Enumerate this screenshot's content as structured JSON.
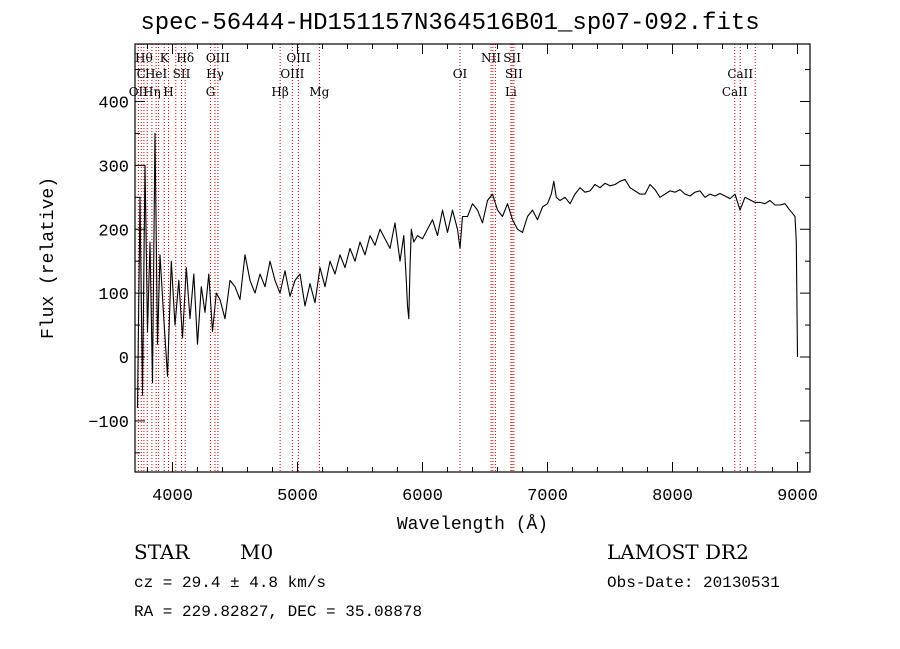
{
  "chart_data": {
    "type": "line",
    "title": "spec-56444-HD151157N364516B01_sp07-092.fits",
    "xlabel": "Wavelength (Å)",
    "ylabel": "Flux (relative)",
    "xlim": [
      3700,
      9100
    ],
    "ylim": [
      -180,
      490
    ],
    "xticks": [
      4000,
      5000,
      6000,
      7000,
      8000,
      9000
    ],
    "yticks": [
      -100,
      0,
      100,
      200,
      300,
      400
    ],
    "grid": false,
    "line_color": "#000000",
    "marker_line_color": "#cc0000",
    "series": [
      {
        "x": [
          3720,
          3740,
          3760,
          3780,
          3800,
          3820,
          3840,
          3860,
          3880,
          3900,
          3930,
          3960,
          3990,
          4020,
          4050,
          4080,
          4110,
          4140,
          4170,
          4200,
          4230,
          4260,
          4290,
          4320,
          4350,
          4380,
          4420,
          4460,
          4500,
          4540,
          4580,
          4620,
          4660,
          4700,
          4740,
          4780,
          4820,
          4860,
          4900,
          4940,
          4980,
          5020,
          5060,
          5100,
          5140,
          5180,
          5220,
          5260,
          5300,
          5340,
          5380,
          5420,
          5460,
          5500,
          5540,
          5580,
          5620,
          5660,
          5700,
          5740,
          5780,
          5820,
          5850,
          5870,
          5880,
          5890,
          5900,
          5910,
          5930,
          5960,
          6000,
          6040,
          6080,
          6120,
          6160,
          6200,
          6240,
          6280,
          6300,
          6320,
          6360,
          6400,
          6440,
          6480,
          6520,
          6560,
          6600,
          6640,
          6680,
          6720,
          6760,
          6800,
          6840,
          6880,
          6920,
          6960,
          7000,
          7030,
          7050,
          7070,
          7100,
          7140,
          7180,
          7220,
          7260,
          7300,
          7340,
          7380,
          7420,
          7460,
          7500,
          7540,
          7580,
          7620,
          7660,
          7700,
          7740,
          7780,
          7820,
          7860,
          7900,
          7940,
          7980,
          8020,
          8060,
          8100,
          8140,
          8180,
          8220,
          8260,
          8300,
          8340,
          8380,
          8420,
          8460,
          8500,
          8540,
          8580,
          8620,
          8660,
          8700,
          8740,
          8780,
          8820,
          8860,
          8900,
          8930,
          8960,
          8980,
          8990,
          9000
        ],
        "y": [
          -80,
          250,
          -60,
          300,
          40,
          180,
          -40,
          350,
          20,
          160,
          60,
          -30,
          150,
          50,
          120,
          30,
          140,
          60,
          130,
          20,
          110,
          70,
          130,
          40,
          100,
          90,
          60,
          120,
          110,
          90,
          160,
          120,
          100,
          130,
          110,
          150,
          120,
          100,
          135,
          95,
          120,
          130,
          80,
          115,
          85,
          140,
          110,
          150,
          130,
          160,
          140,
          170,
          150,
          180,
          160,
          190,
          175,
          200,
          185,
          170,
          210,
          150,
          190,
          120,
          80,
          60,
          140,
          200,
          180,
          190,
          185,
          200,
          215,
          190,
          230,
          195,
          230,
          200,
          170,
          220,
          220,
          240,
          230,
          210,
          245,
          255,
          230,
          220,
          240,
          215,
          200,
          195,
          220,
          230,
          215,
          235,
          240,
          255,
          275,
          250,
          245,
          250,
          240,
          255,
          265,
          258,
          260,
          270,
          265,
          272,
          268,
          270,
          275,
          278,
          265,
          260,
          255,
          255,
          270,
          262,
          250,
          255,
          260,
          258,
          262,
          255,
          252,
          258,
          260,
          250,
          255,
          252,
          256,
          252,
          248,
          255,
          230,
          250,
          246,
          242,
          242,
          240,
          245,
          238,
          238,
          240,
          232,
          225,
          220,
          180,
          0
        ]
      }
    ],
    "line_markers": [
      {
        "w": 3727,
        "label": "OII",
        "row": 3
      },
      {
        "w": 3750,
        "label": "C",
        "row": 2
      },
      {
        "w": 3771,
        "label": "Hθ",
        "row": 1
      },
      {
        "w": 3798,
        "label": "",
        "row": 0
      },
      {
        "w": 3835,
        "label": "Hη",
        "row": 3
      },
      {
        "w": 3869,
        "label": "HeI",
        "row": 2
      },
      {
        "w": 3889,
        "label": "",
        "row": 0
      },
      {
        "w": 3934,
        "label": "K",
        "row": 1
      },
      {
        "w": 3968,
        "label": "H",
        "row": 3
      },
      {
        "w": 4026,
        "label": "",
        "row": 0
      },
      {
        "w": 4072,
        "label": "SII",
        "row": 2
      },
      {
        "w": 4102,
        "label": "Hδ",
        "row": 1
      },
      {
        "w": 4304,
        "label": "G",
        "row": 3
      },
      {
        "w": 4340,
        "label": "Hγ",
        "row": 2
      },
      {
        "w": 4363,
        "label": "OIII",
        "row": 1
      },
      {
        "w": 4861,
        "label": "Hβ",
        "row": 3
      },
      {
        "w": 4959,
        "label": "OIII",
        "row": 2
      },
      {
        "w": 5007,
        "label": "OIII",
        "row": 1
      },
      {
        "w": 5175,
        "label": "Mg",
        "row": 3
      },
      {
        "w": 6300,
        "label": "OI",
        "row": 2
      },
      {
        "w": 6548,
        "label": "NII",
        "row": 1
      },
      {
        "w": 6563,
        "label": "",
        "row": 0
      },
      {
        "w": 6583,
        "label": "",
        "row": 0
      },
      {
        "w": 6707,
        "label": "Li",
        "row": 3
      },
      {
        "w": 6717,
        "label": "SII",
        "row": 1
      },
      {
        "w": 6731,
        "label": "SII",
        "row": 2
      },
      {
        "w": 8498,
        "label": "CaII",
        "row": 3
      },
      {
        "w": 8542,
        "label": "CaII",
        "row": 2
      },
      {
        "w": 8662,
        "label": "",
        "row": 0
      }
    ]
  },
  "info": {
    "object_type": "STAR",
    "subclass": "M0",
    "survey": "LAMOST DR2",
    "cz": "cz = 29.4 ± 4.8 km/s",
    "obs_date": "Obs-Date: 20130531",
    "coords": "RA = 229.82827, DEC =  35.08878"
  }
}
